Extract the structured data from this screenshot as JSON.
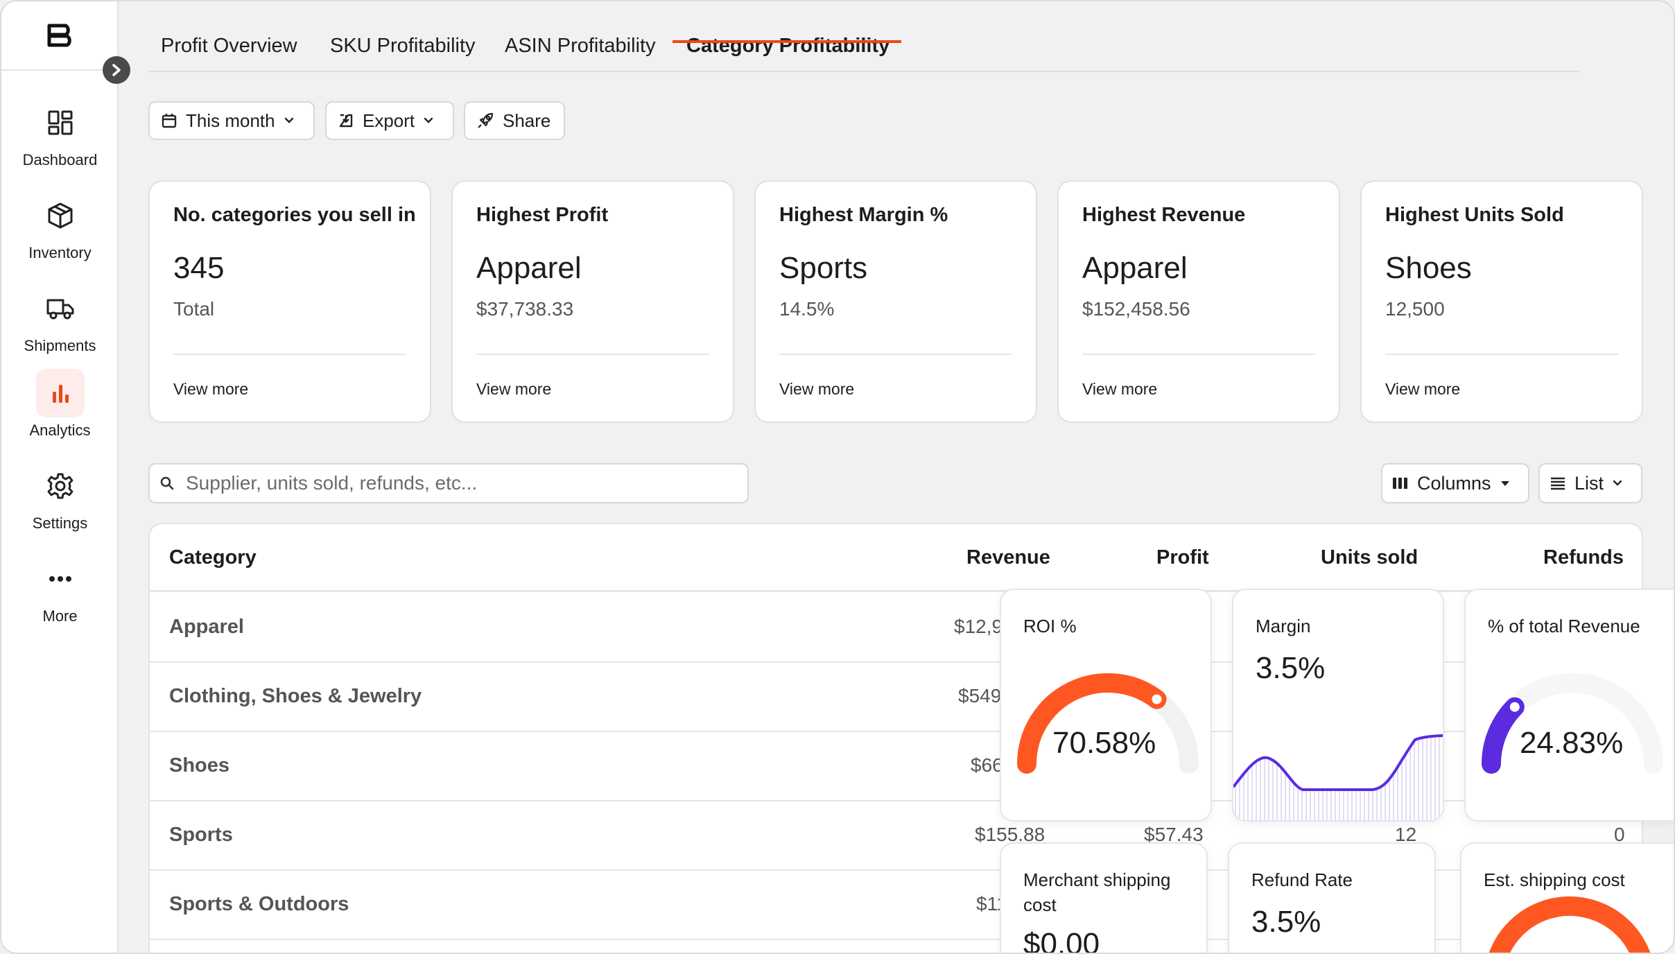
{
  "colors": {
    "accent": "#e64a19",
    "gauge_orange": "#ff5722",
    "gauge_purple": "#5b2be0",
    "analytics_bg": "#fdecea"
  },
  "sidebar": {
    "items": [
      {
        "label": "Dashboard",
        "icon": "dashboard-icon"
      },
      {
        "label": "Inventory",
        "icon": "box-icon"
      },
      {
        "label": "Shipments",
        "icon": "truck-icon"
      },
      {
        "label": "Analytics",
        "icon": "bar-chart-icon",
        "active": true
      },
      {
        "label": "Settings",
        "icon": "gear-icon"
      },
      {
        "label": "More",
        "icon": "ellipsis-icon"
      }
    ]
  },
  "tabs": [
    {
      "label": "Profit Overview"
    },
    {
      "label": "SKU Profitability"
    },
    {
      "label": "ASIN Profitability"
    },
    {
      "label": "Category Profitability",
      "active": true
    }
  ],
  "toolbar": {
    "date_label": "This month",
    "export_label": "Export",
    "share_label": "Share"
  },
  "cards": [
    {
      "title": "No. categories you sell in",
      "value": "345",
      "sub": "Total",
      "link": "View more"
    },
    {
      "title": "Highest Profit",
      "value": "Apparel",
      "sub": "$37,738.33",
      "link": "View more"
    },
    {
      "title": "Highest Margin %",
      "value": "Sports",
      "sub": "14.5%",
      "link": "View more"
    },
    {
      "title": "Highest Revenue",
      "value": "Apparel",
      "sub": "$152,458.56",
      "link": "View more"
    },
    {
      "title": "Highest Units Sold",
      "value": "Shoes",
      "sub": "12,500",
      "link": "View more"
    }
  ],
  "search": {
    "placeholder": "Supplier, units sold, refunds, etc..."
  },
  "controls": {
    "columns_label": "Columns",
    "list_label": "List"
  },
  "table": {
    "headers": {
      "category": "Category",
      "revenue": "Revenue",
      "profit": "Profit",
      "units": "Units sold",
      "refunds": "Refunds"
    },
    "rows": [
      {
        "category": "Apparel",
        "revenue": "$12,9",
        "profit": "",
        "units": "",
        "refunds": ""
      },
      {
        "category": "Clothing, Shoes & Jewelry",
        "revenue": "$549",
        "profit": "",
        "units": "",
        "refunds": ""
      },
      {
        "category": "Shoes",
        "revenue": "$66",
        "profit": "",
        "units": "",
        "refunds": ""
      },
      {
        "category": "Sports",
        "revenue": "$155.88",
        "profit": "$57.43",
        "units": "12",
        "refunds": "0"
      },
      {
        "category": "Sports & Outdoors",
        "revenue": "$11",
        "profit": "",
        "units": "",
        "refunds": ""
      }
    ]
  },
  "widgets": {
    "roi": {
      "title": "ROI %",
      "value": "70.58%",
      "fraction": 0.7058
    },
    "margin": {
      "title": "Margin",
      "value": "3.5%"
    },
    "revenue_share": {
      "title": "% of total Revenue",
      "value": "24.83%",
      "fraction": 0.2483
    },
    "merchant_shipping": {
      "title": "Merchant shipping cost",
      "value": "$0.00"
    },
    "refund_rate": {
      "title": "Refund Rate",
      "value": "3.5%"
    },
    "est_shipping": {
      "title": "Est. shipping cost"
    }
  }
}
